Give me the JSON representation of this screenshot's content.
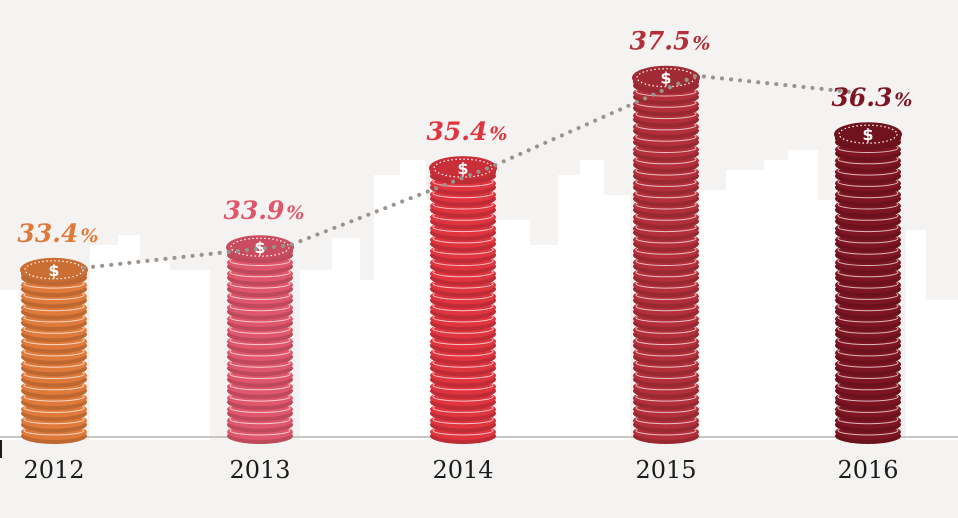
{
  "chart_data": {
    "type": "bar",
    "categories": [
      "2012",
      "2013",
      "2014",
      "2015",
      "2016"
    ],
    "values": [
      33.4,
      33.9,
      35.4,
      37.5,
      36.3
    ],
    "value_labels": [
      "33.4",
      "33.9",
      "35.4",
      "37.5",
      "36.3"
    ],
    "value_suffix": "%",
    "unit": "%",
    "title": "",
    "xlabel": "",
    "ylabel": "",
    "ylim": [
      30,
      38
    ],
    "grid": false,
    "legend": "none",
    "marker_style": "stacked-coins",
    "trend_line": "dotted",
    "colors": [
      "#e07a3a",
      "#e0566a",
      "#e0343f",
      "#b3303a",
      "#7e1522"
    ],
    "label_colors": [
      "#e07a3a",
      "#e0566a",
      "#e0343f",
      "#b3303a",
      "#7e1522"
    ],
    "trend_color": "#9a948c",
    "axis_color": "#c9c5c0",
    "background_color": "#f4f3f1",
    "skyline_color": "#ffffff",
    "coin_icon": "dollar-icon"
  }
}
